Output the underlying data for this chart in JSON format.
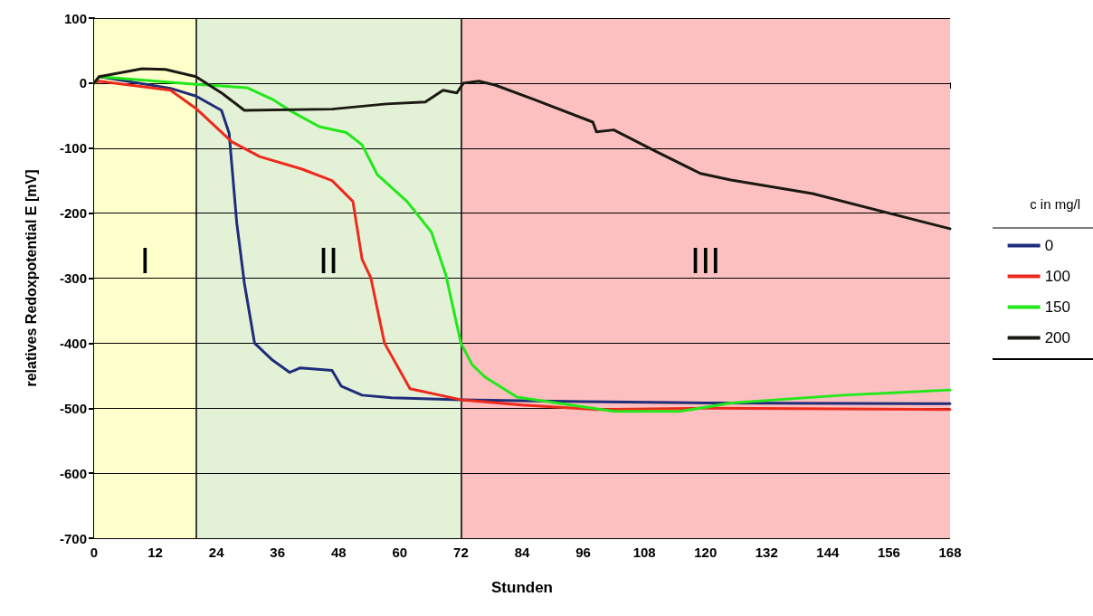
{
  "chart_data": {
    "type": "line",
    "xlabel": "Stunden",
    "ylabel": "relatives Redoxpotential E [mV]",
    "legend_title": "c in mg/l",
    "legend": "right",
    "grid": "y",
    "marker": "none",
    "line_style": "solid",
    "xlim": [
      0,
      168
    ],
    "xticks": [
      0,
      12,
      24,
      36,
      48,
      60,
      72,
      84,
      96,
      108,
      120,
      132,
      144,
      156,
      168
    ],
    "ylim": [
      -700,
      100
    ],
    "yticks": [
      -700,
      -600,
      -500,
      -400,
      -300,
      -200,
      -100,
      0,
      100
    ],
    "bands": [
      {
        "axis": "x",
        "from": 0,
        "to": 20,
        "label": "I",
        "color": "#ffffcc"
      },
      {
        "axis": "x",
        "from": 20,
        "to": 72,
        "label": "II",
        "color": "#e3f2d7"
      },
      {
        "axis": "x",
        "from": 72,
        "to": 168,
        "label": "III",
        "color": "#fcc0c0"
      }
    ],
    "ref_lines": [
      {
        "axis": "x",
        "value": 20,
        "color": "#000000"
      },
      {
        "axis": "x",
        "value": 72,
        "color": "#000000"
      }
    ],
    "series": [
      {
        "name": "0",
        "color": "#1f2d7a",
        "x": [
          0,
          1,
          15,
          20,
          25,
          26.5,
          28,
          29.5,
          31.5,
          35,
          38.4,
          40.5,
          46.7,
          48.5,
          52.6,
          58.4,
          72,
          96,
          120,
          168
        ],
        "values": [
          0,
          10,
          -8,
          -20,
          -42,
          -77,
          -215,
          -308,
          -400,
          -426,
          -445,
          -438,
          -442,
          -466,
          -480,
          -484,
          -487,
          -490,
          -492,
          -493
        ]
      },
      {
        "name": "100",
        "color": "#ee2a1c",
        "x": [
          0,
          1,
          15,
          20,
          27,
          32.5,
          40.7,
          46.7,
          50.8,
          52.6,
          54.3,
          57,
          62,
          72,
          84,
          98.6,
          120,
          168
        ],
        "values": [
          0,
          3,
          -11,
          -39,
          -90,
          -113,
          -132,
          -150,
          -182,
          -271,
          -299,
          -400,
          -470,
          -487,
          -495,
          -502,
          -500,
          -502
        ]
      },
      {
        "name": "150",
        "color": "#22e81a",
        "x": [
          0,
          1,
          20,
          30,
          35,
          38.4,
          44.2,
          49.5,
          52.6,
          55.6,
          61.4,
          66.2,
          69,
          72,
          74.2,
          76.7,
          83,
          102,
          115,
          125,
          147,
          168
        ],
        "values": [
          0,
          10,
          -2,
          -7,
          -25,
          -42,
          -67,
          -76,
          -95,
          -141,
          -182,
          -229,
          -294,
          -400,
          -433,
          -452,
          -483,
          -505,
          -505,
          -492,
          -480,
          -472
        ]
      },
      {
        "name": "200",
        "color": "#1a1a12",
        "x": [
          0,
          1,
          9.4,
          14,
          20,
          25,
          29.5,
          46.7,
          57.4,
          65,
          68.5,
          71.2,
          72.5,
          75.5,
          78.7,
          86.3,
          97.9,
          98.6,
          102,
          110,
          119,
          125,
          141,
          168
        ],
        "values": [
          0,
          10,
          22,
          21,
          10,
          -15,
          -42,
          -40,
          -32,
          -29,
          -11,
          -15,
          0,
          3,
          -3,
          -25,
          -60,
          -75,
          -72,
          -104,
          -139,
          -149,
          -170,
          -224
        ]
      }
    ]
  }
}
